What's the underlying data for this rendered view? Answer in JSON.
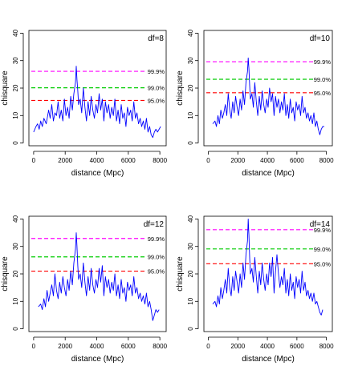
{
  "chart_data": [
    {
      "type": "line",
      "title": "df=8",
      "xlabel": "distance (Mpc)",
      "ylabel": "chisquare",
      "xlim": [
        -300,
        8400
      ],
      "ylim": [
        -1,
        41
      ],
      "x_ticks": [
        "0",
        "2000",
        "4000",
        "6000",
        "8000"
      ],
      "y_ticks": [
        "0",
        "10",
        "20",
        "30",
        "40"
      ],
      "grid": false,
      "thresholds": [
        {
          "label": "99.9%",
          "value": 26.1,
          "color": "#ff00ff"
        },
        {
          "label": "99.0%",
          "value": 20.1,
          "color": "#00cc00"
        },
        {
          "label": "95.0%",
          "value": 15.5,
          "color": "#ff0000"
        }
      ],
      "series": [
        {
          "color": "#0000ff",
          "x": [
            0,
            150,
            250,
            350,
            450,
            550,
            650,
            800,
            950,
            1050,
            1150,
            1250,
            1350,
            1450,
            1550,
            1650,
            1750,
            1850,
            1950,
            2050,
            2150,
            2250,
            2350,
            2450,
            2550,
            2650,
            2700,
            2750,
            2800,
            2850,
            2950,
            3050,
            3150,
            3250,
            3350,
            3450,
            3550,
            3650,
            3750,
            3850,
            3950,
            4050,
            4150,
            4250,
            4350,
            4450,
            4550,
            4650,
            4750,
            4850,
            4950,
            5050,
            5150,
            5250,
            5350,
            5450,
            5550,
            5650,
            5750,
            5850,
            5950,
            6050,
            6150,
            6250,
            6350,
            6450,
            6550,
            6650,
            6750,
            6850,
            6950,
            7050,
            7150,
            7250,
            7350,
            7450,
            7550,
            7650,
            7750,
            7850,
            7950,
            8050
          ],
          "y": [
            4,
            6,
            7,
            5,
            8,
            6,
            9,
            7,
            12,
            9,
            14,
            8,
            11,
            10,
            15,
            9,
            12,
            8,
            16,
            10,
            13,
            9,
            17,
            12,
            18,
            22,
            28,
            23,
            19,
            14,
            16,
            11,
            20,
            13,
            8,
            15,
            10,
            17,
            12,
            9,
            14,
            11,
            18,
            12,
            16,
            8,
            15,
            11,
            14,
            9,
            13,
            10,
            16,
            8,
            12,
            7,
            14,
            9,
            11,
            6,
            13,
            10,
            12,
            8,
            15,
            9,
            11,
            7,
            9,
            6,
            8,
            5,
            9,
            4,
            6,
            3,
            2,
            4,
            5,
            4,
            5,
            6
          ]
        }
      ]
    },
    {
      "type": "line",
      "title": "df=10",
      "xlabel": "distance (Mpc)",
      "ylabel": "chisquare",
      "xlim": [
        -300,
        8400
      ],
      "ylim": [
        -1,
        41
      ],
      "x_ticks": [
        "0",
        "2000",
        "4000",
        "6000",
        "8000"
      ],
      "y_ticks": [
        "0",
        "10",
        "20",
        "30",
        "40"
      ],
      "grid": false,
      "thresholds": [
        {
          "label": "99.9%",
          "value": 29.6,
          "color": "#ff00ff"
        },
        {
          "label": "99.0%",
          "value": 23.2,
          "color": "#00cc00"
        },
        {
          "label": "95.0%",
          "value": 18.3,
          "color": "#ff0000"
        }
      ],
      "series": [
        {
          "color": "#0000ff",
          "x": [
            300,
            450,
            550,
            650,
            750,
            850,
            950,
            1050,
            1150,
            1250,
            1350,
            1450,
            1550,
            1650,
            1750,
            1850,
            1950,
            2050,
            2150,
            2250,
            2350,
            2450,
            2550,
            2650,
            2700,
            2750,
            2800,
            2850,
            2950,
            3050,
            3150,
            3250,
            3350,
            3450,
            3550,
            3650,
            3750,
            3850,
            3950,
            4050,
            4150,
            4250,
            4350,
            4450,
            4550,
            4650,
            4750,
            4850,
            4950,
            5050,
            5150,
            5250,
            5350,
            5450,
            5550,
            5650,
            5750,
            5850,
            5950,
            6050,
            6150,
            6250,
            6350,
            6450,
            6550,
            6650,
            6750,
            6850,
            6950,
            7050,
            7150,
            7250,
            7350,
            7450,
            7550,
            7650,
            7750,
            7850
          ],
          "y": [
            7,
            8,
            6,
            10,
            7,
            12,
            9,
            11,
            14,
            10,
            18,
            12,
            9,
            15,
            11,
            17,
            13,
            10,
            16,
            12,
            19,
            14,
            22,
            26,
            31,
            27,
            21,
            16,
            18,
            13,
            22,
            15,
            10,
            17,
            12,
            19,
            14,
            11,
            16,
            13,
            20,
            15,
            18,
            10,
            17,
            13,
            16,
            11,
            15,
            12,
            18,
            10,
            14,
            9,
            16,
            11,
            13,
            8,
            15,
            12,
            14,
            10,
            17,
            11,
            13,
            9,
            11,
            8,
            10,
            7,
            11,
            6,
            8,
            5,
            3,
            5,
            6,
            6
          ]
        }
      ]
    },
    {
      "type": "line",
      "title": "df=12",
      "xlabel": "distance (Mpc)",
      "ylabel": "chisquare",
      "xlim": [
        -300,
        8400
      ],
      "ylim": [
        -1,
        41
      ],
      "x_ticks": [
        "0",
        "2000",
        "4000",
        "6000",
        "8000"
      ],
      "y_ticks": [
        "0",
        "10",
        "20",
        "30",
        "40"
      ],
      "grid": false,
      "thresholds": [
        {
          "label": "99.9%",
          "value": 32.9,
          "color": "#ff00ff"
        },
        {
          "label": "99.0%",
          "value": 26.2,
          "color": "#00cc00"
        },
        {
          "label": "95.0%",
          "value": 21.0,
          "color": "#ff0000"
        }
      ],
      "series": [
        {
          "color": "#0000ff",
          "x": [
            300,
            450,
            550,
            650,
            750,
            850,
            950,
            1050,
            1150,
            1250,
            1350,
            1450,
            1550,
            1650,
            1750,
            1850,
            1950,
            2050,
            2150,
            2250,
            2350,
            2450,
            2550,
            2650,
            2700,
            2750,
            2800,
            2850,
            2950,
            3050,
            3150,
            3250,
            3350,
            3450,
            3550,
            3650,
            3750,
            3850,
            3950,
            4050,
            4150,
            4250,
            4350,
            4450,
            4550,
            4650,
            4750,
            4850,
            4950,
            5050,
            5150,
            5250,
            5350,
            5450,
            5550,
            5650,
            5750,
            5850,
            5950,
            6050,
            6150,
            6250,
            6350,
            6450,
            6550,
            6650,
            6750,
            6850,
            6950,
            7050,
            7150,
            7250,
            7350,
            7450,
            7550,
            7650,
            7750,
            7850,
            7950
          ],
          "y": [
            8,
            9,
            7,
            11,
            8,
            14,
            10,
            13,
            16,
            12,
            20,
            14,
            11,
            17,
            13,
            19,
            15,
            12,
            18,
            14,
            21,
            16,
            24,
            29,
            35,
            30,
            23,
            18,
            20,
            15,
            24,
            17,
            12,
            19,
            14,
            22,
            16,
            13,
            18,
            15,
            22,
            17,
            23,
            12,
            19,
            15,
            18,
            13,
            17,
            14,
            20,
            12,
            16,
            11,
            18,
            13,
            15,
            10,
            17,
            14,
            16,
            12,
            19,
            13,
            15,
            11,
            13,
            10,
            12,
            9,
            13,
            8,
            10,
            7,
            3,
            5,
            7,
            6,
            7
          ]
        }
      ]
    },
    {
      "type": "line",
      "title": "df=14",
      "xlabel": "distance (Mpc)",
      "ylabel": "chisquare",
      "xlim": [
        -300,
        8400
      ],
      "ylim": [
        -1,
        41
      ],
      "x_ticks": [
        "0",
        "2000",
        "4000",
        "6000",
        "8000"
      ],
      "y_ticks": [
        "0",
        "10",
        "20",
        "30",
        "40"
      ],
      "grid": false,
      "thresholds": [
        {
          "label": "99.9%",
          "value": 36.1,
          "color": "#ff00ff"
        },
        {
          "label": "99.0%",
          "value": 29.1,
          "color": "#00cc00"
        },
        {
          "label": "95.0%",
          "value": 23.7,
          "color": "#ff0000"
        }
      ],
      "series": [
        {
          "color": "#0000ff",
          "x": [
            300,
            450,
            550,
            650,
            750,
            850,
            950,
            1050,
            1150,
            1250,
            1350,
            1450,
            1550,
            1650,
            1750,
            1850,
            1950,
            2050,
            2150,
            2250,
            2350,
            2450,
            2550,
            2650,
            2700,
            2750,
            2800,
            2850,
            2950,
            3050,
            3150,
            3250,
            3350,
            3450,
            3550,
            3650,
            3750,
            3850,
            3950,
            4050,
            4150,
            4250,
            4350,
            4450,
            4550,
            4650,
            4750,
            4850,
            4950,
            5050,
            5150,
            5250,
            5350,
            5450,
            5550,
            5650,
            5750,
            5850,
            5950,
            6050,
            6150,
            6250,
            6350,
            6450,
            6550,
            6650,
            6750,
            6850,
            6950,
            7050,
            7150,
            7250,
            7350,
            7450,
            7550,
            7650,
            7750
          ],
          "y": [
            9,
            10,
            8,
            12,
            9,
            15,
            11,
            14,
            18,
            13,
            22,
            15,
            12,
            19,
            14,
            21,
            17,
            13,
            20,
            15,
            24,
            18,
            27,
            32,
            40,
            34,
            26,
            20,
            22,
            17,
            26,
            19,
            13,
            21,
            16,
            24,
            18,
            14,
            20,
            16,
            24,
            19,
            26,
            13,
            21,
            27,
            20,
            15,
            19,
            16,
            22,
            13,
            18,
            12,
            20,
            14,
            17,
            11,
            19,
            15,
            18,
            13,
            21,
            14,
            17,
            12,
            14,
            11,
            13,
            10,
            13,
            9,
            10,
            8,
            6,
            5,
            7
          ]
        }
      ]
    }
  ]
}
